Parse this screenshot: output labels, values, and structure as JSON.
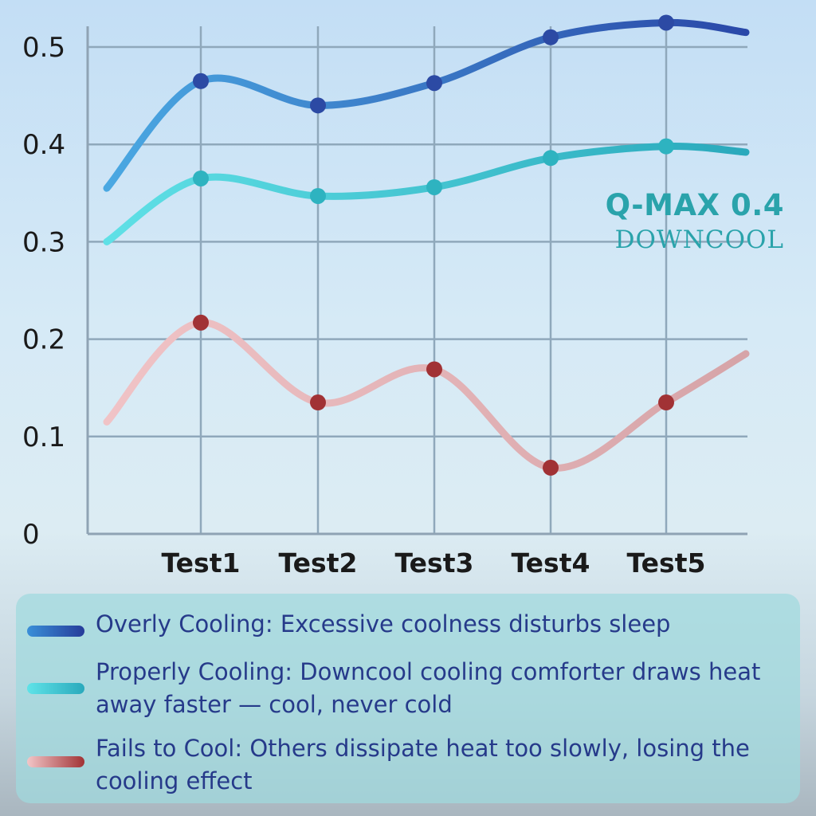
{
  "brand": {
    "line1": "Q-MAX 0.4",
    "line2": "DOWNCOOL"
  },
  "chart_data": {
    "type": "line",
    "categories": [
      "Test1",
      "Test2",
      "Test3",
      "Test4",
      "Test5"
    ],
    "ylim": [
      0,
      0.5
    ],
    "yticks": [
      "0",
      "0.1",
      "0.2",
      "0.3",
      "0.4",
      "0.5"
    ],
    "grid": true,
    "series": [
      {
        "key": "overly",
        "values": [
          0.465,
          0.44,
          0.463,
          0.51,
          0.525
        ],
        "start": 0.355,
        "end": 0.515,
        "colors": [
          "#4aa8e2",
          "#2a48a8"
        ],
        "marker": "#2c4aa4"
      },
      {
        "key": "properly",
        "values": [
          0.365,
          0.347,
          0.356,
          0.386,
          0.398
        ],
        "start": 0.3,
        "end": 0.392,
        "colors": [
          "#5fe0e6",
          "#2aa9bc"
        ],
        "marker": "#2eb3c0"
      },
      {
        "key": "fails",
        "values": [
          0.217,
          0.135,
          0.169,
          0.068,
          0.135
        ],
        "start": 0.115,
        "end": 0.185,
        "colors": [
          "#f0c3c6",
          "#d6a4a8"
        ],
        "marker": "#a13235"
      }
    ]
  },
  "legend": [
    {
      "text": "Overly Cooling: Excessive coolness disturbs sleep",
      "colors": [
        "#3a8fd8",
        "#263c9a"
      ]
    },
    {
      "text": "Properly Cooling: Downcool cooling comforter draws heat away faster — cool, never cold",
      "colors": [
        "#5fe3e8",
        "#2aa9bc"
      ]
    },
    {
      "text": "Fails to Cool: Others dissipate heat too slowly, losing the cooling effect",
      "colors": [
        "#f2c6c8",
        "#a13235"
      ]
    }
  ]
}
